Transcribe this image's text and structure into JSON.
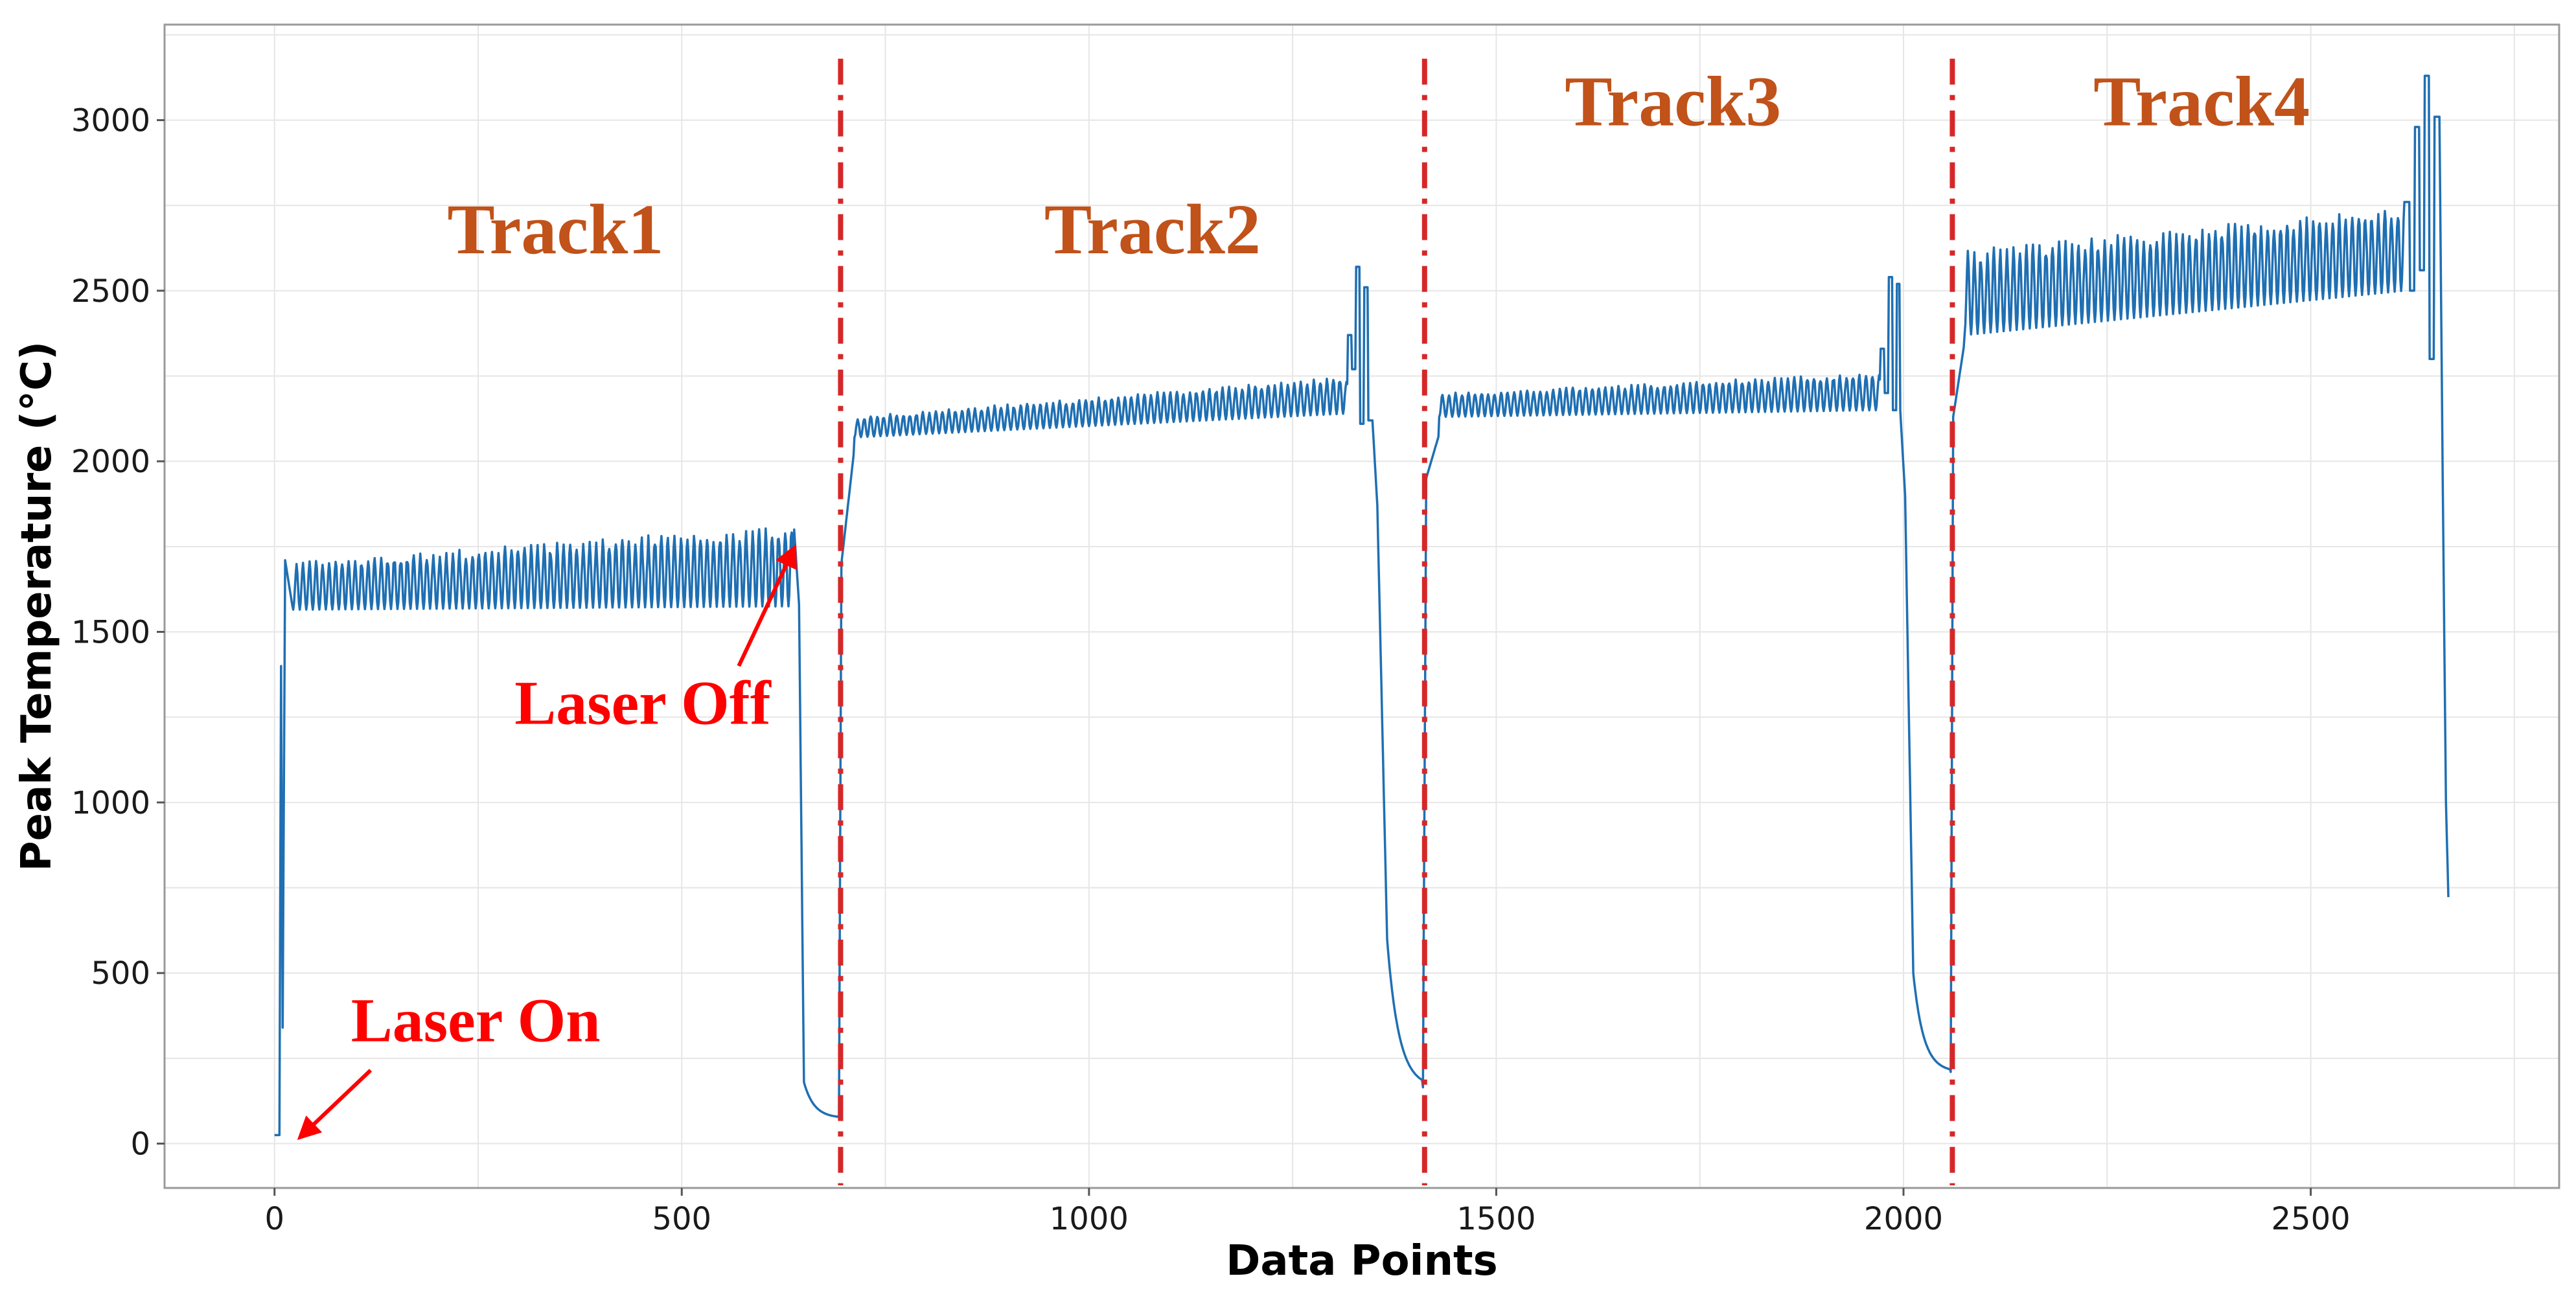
{
  "chart_data": {
    "type": "line",
    "title": "",
    "xlabel": "Data Points",
    "ylabel": "Peak Temperature (°C)",
    "xlim": [
      -135,
      2805
    ],
    "ylim": [
      -130,
      3280
    ],
    "xticks": [
      0,
      500,
      1000,
      1500,
      2000,
      2500
    ],
    "yticks": [
      0,
      500,
      1000,
      1500,
      2000,
      2500,
      3000
    ],
    "grid": true,
    "colors": {
      "series": "#1f6fb2",
      "divider": "#d62728",
      "track": "#c0521a",
      "laser": "#ff0000"
    },
    "dividers": [
      695,
      1412,
      2060
    ],
    "divider_top": 3180,
    "series": [
      {
        "name": "Peak Temperature",
        "segments": [
          {
            "start": 0,
            "end": 6,
            "kind": "flat",
            "value": 25
          },
          {
            "start": 6,
            "end": 8,
            "kind": "linear",
            "from": 25,
            "to": 1400
          },
          {
            "start": 8,
            "end": 10,
            "kind": "linear",
            "from": 1400,
            "to": 340
          },
          {
            "start": 10,
            "end": 13,
            "kind": "linear",
            "from": 340,
            "to": 1710
          },
          {
            "start": 13,
            "end": 23,
            "kind": "linear",
            "from": 1710,
            "to": 1560
          },
          {
            "start": 23,
            "end": 638,
            "kind": "osc",
            "base_from": 1565,
            "base_to": 1575,
            "amp_from": 140,
            "amp_to": 240,
            "period": 8
          },
          {
            "start": 638,
            "end": 644,
            "kind": "linear",
            "from": 1800,
            "to": 1580
          },
          {
            "start": 644,
            "end": 650,
            "kind": "linear",
            "from": 1580,
            "to": 180
          },
          {
            "start": 650,
            "end": 693,
            "kind": "decay",
            "from": 180,
            "to": 75,
            "rate": 0.08
          },
          {
            "start": 693,
            "end": 696,
            "kind": "linear",
            "from": 75,
            "to": 1700
          },
          {
            "start": 696,
            "end": 712,
            "kind": "linear",
            "from": 1700,
            "to": 2040
          },
          {
            "start": 712,
            "end": 1318,
            "kind": "osc",
            "base_from": 2070,
            "base_to": 2140,
            "amp_from": 60,
            "amp_to": 110,
            "period": 8
          },
          {
            "start": 1318,
            "end": 1348,
            "kind": "spike",
            "peaks": [
              2370,
              2270,
              2570,
              2110,
              2510,
              2120
            ]
          },
          {
            "start": 1348,
            "end": 1354,
            "kind": "linear",
            "from": 2120,
            "to": 1870
          },
          {
            "start": 1354,
            "end": 1366,
            "kind": "linear",
            "from": 1870,
            "to": 600
          },
          {
            "start": 1366,
            "end": 1410,
            "kind": "decay",
            "from": 600,
            "to": 165,
            "rate": 0.07
          },
          {
            "start": 1410,
            "end": 1414,
            "kind": "linear",
            "from": 165,
            "to": 1950
          },
          {
            "start": 1414,
            "end": 1430,
            "kind": "linear",
            "from": 1950,
            "to": 2080
          },
          {
            "start": 1430,
            "end": 1972,
            "kind": "osc",
            "base_from": 2130,
            "base_to": 2150,
            "amp_from": 70,
            "amp_to": 110,
            "period": 8
          },
          {
            "start": 1972,
            "end": 1996,
            "kind": "spike",
            "peaks": [
              2330,
              2200,
              2540,
              2150,
              2520
            ]
          },
          {
            "start": 1996,
            "end": 2002,
            "kind": "linear",
            "from": 2150,
            "to": 1900
          },
          {
            "start": 2002,
            "end": 2012,
            "kind": "linear",
            "from": 1900,
            "to": 500
          },
          {
            "start": 2012,
            "end": 2058,
            "kind": "decay",
            "from": 500,
            "to": 210,
            "rate": 0.08
          },
          {
            "start": 2058,
            "end": 2061,
            "kind": "linear",
            "from": 210,
            "to": 2130
          },
          {
            "start": 2061,
            "end": 2075,
            "kind": "linear",
            "from": 2130,
            "to": 2350
          },
          {
            "start": 2075,
            "end": 2615,
            "kind": "osc",
            "base_from": 2370,
            "base_to": 2500,
            "amp_from": 250,
            "amp_to": 250,
            "period": 8
          },
          {
            "start": 2615,
            "end": 2658,
            "kind": "spike",
            "peaks": [
              2760,
              2500,
              2980,
              2560,
              3130,
              2300,
              3010
            ]
          },
          {
            "start": 2658,
            "end": 2662,
            "kind": "linear",
            "from": 3010,
            "to": 1960
          },
          {
            "start": 2662,
            "end": 2666,
            "kind": "linear",
            "from": 1960,
            "to": 1000
          },
          {
            "start": 2666,
            "end": 2670,
            "kind": "linear",
            "from": 1000,
            "to": 630
          }
        ]
      }
    ],
    "annotations": {
      "tracks": [
        {
          "text": "Track1",
          "x": 345,
          "y": 2610
        },
        {
          "text": "Track2",
          "x": 1078,
          "y": 2610
        },
        {
          "text": "Track3",
          "x": 1717,
          "y": 2985
        },
        {
          "text": "Track4",
          "x": 2366,
          "y": 2985
        }
      ],
      "laser_on": {
        "text": "Laser On",
        "x": 247,
        "y": 300,
        "arrow_from": [
          118,
          215
        ],
        "arrow_to": [
          32,
          20
        ]
      },
      "laser_off": {
        "text": "Laser Off",
        "x": 452,
        "y": 1230,
        "arrow_from": [
          570,
          1400
        ],
        "arrow_to": [
          638,
          1745
        ]
      }
    }
  }
}
